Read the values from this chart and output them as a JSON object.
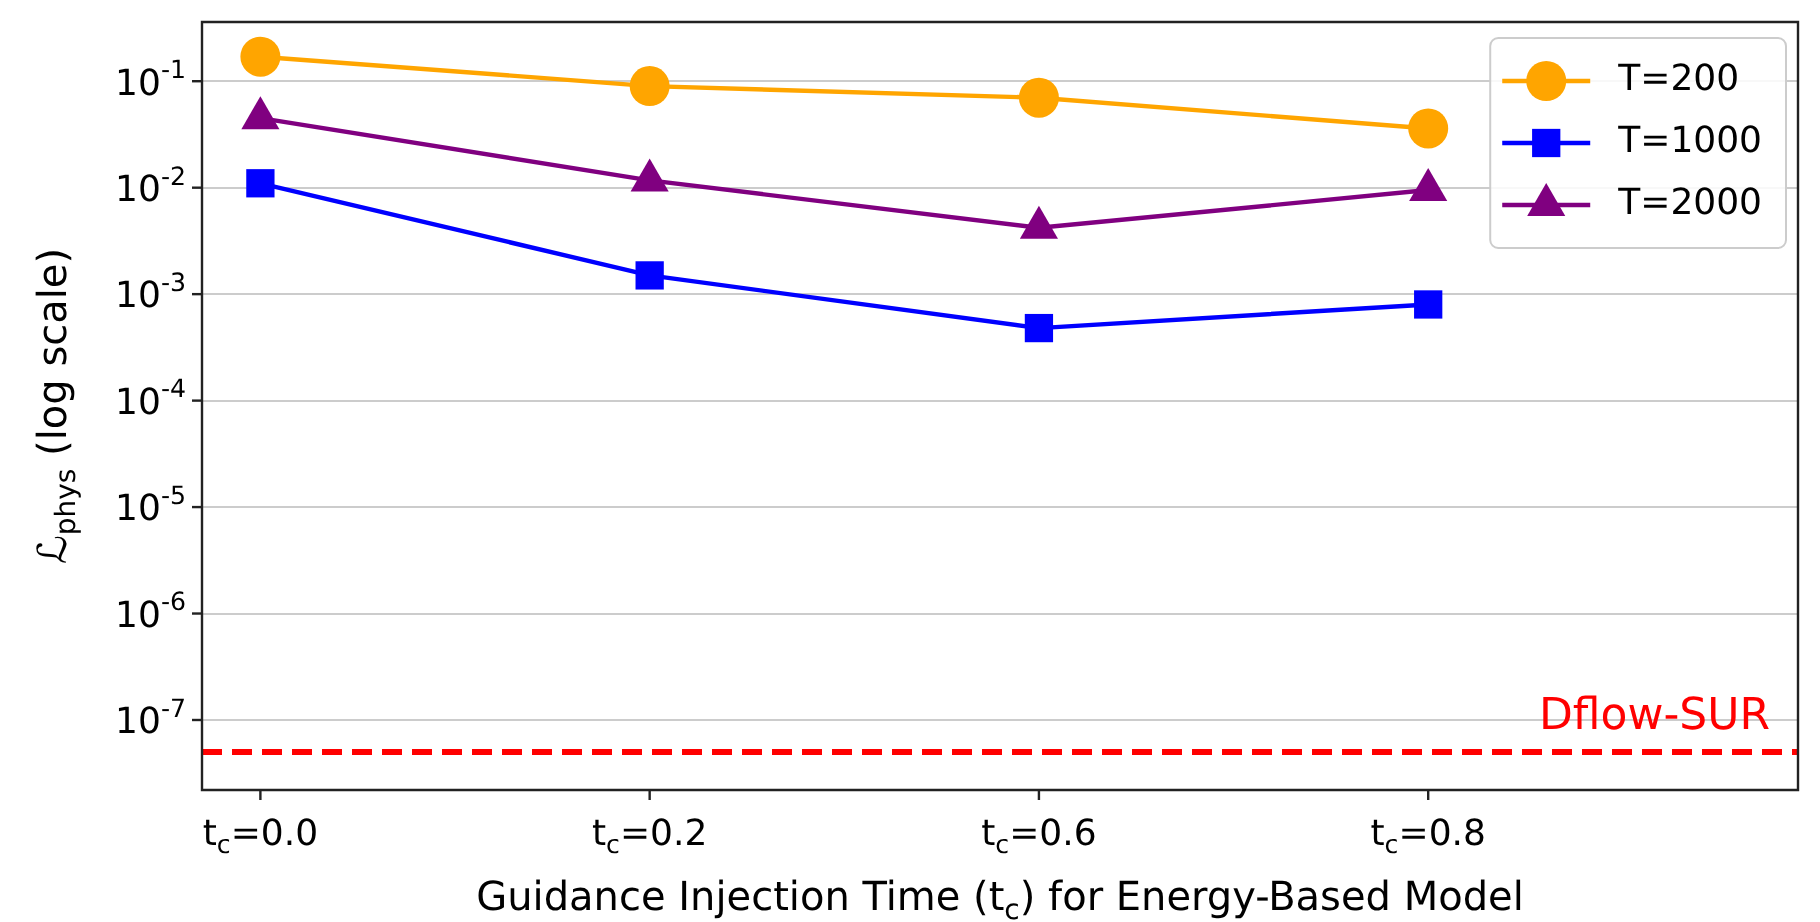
{
  "chart_data": {
    "type": "line",
    "xlabel": "Guidance Injection Time (t$_{c}$) for Energy-Based Model",
    "ylabel": "ℒ$_{phys}$ (log scale)",
    "categories": [
      "t$_{c}$=0.0",
      "t$_{c}$=0.2",
      "t$_{c}$=0.6",
      "t$_{c}$=0.8"
    ],
    "series": [
      {
        "name": "T=200",
        "color": "#ffa500",
        "marker": "circle",
        "values": [
          0.17,
          0.09,
          0.07,
          0.036
        ]
      },
      {
        "name": "T=1000",
        "color": "#0000ff",
        "marker": "square",
        "values": [
          0.011,
          0.0015,
          0.00048,
          0.0008
        ]
      },
      {
        "name": "T=2000",
        "color": "#800080",
        "marker": "triangle",
        "values": [
          0.045,
          0.0117,
          0.0042,
          0.0095
        ]
      }
    ],
    "log": "y",
    "ylim": [
      2.2e-08,
      0.36
    ],
    "yticks": [
      {
        "value": 1e-07,
        "label": "10$^{-7}$"
      },
      {
        "value": 1e-06,
        "label": "10$^{-6}$"
      },
      {
        "value": 1e-05,
        "label": "10$^{-5}$"
      },
      {
        "value": 0.0001,
        "label": "10$^{-4}$"
      },
      {
        "value": 0.001,
        "label": "10$^{-3}$"
      },
      {
        "value": 0.01,
        "label": "10$^{-2}$"
      },
      {
        "value": 0.1,
        "label": "10$^{-1}$"
      }
    ],
    "grid": "y",
    "legend": "top right",
    "ref_lines": [
      {
        "axis": "y",
        "value": 5e-08,
        "label": "Dflow-SUR",
        "color": "#ff0000",
        "line_style": "dashed"
      }
    ]
  }
}
